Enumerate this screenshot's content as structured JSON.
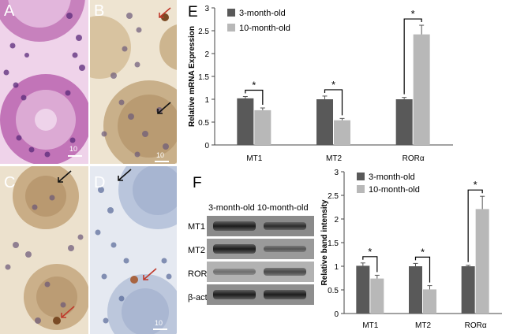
{
  "panels": {
    "A": {
      "letter": "A",
      "scale_label": "10"
    },
    "B": {
      "letter": "B",
      "scale_label": "10"
    },
    "C": {
      "letter": "C"
    },
    "D": {
      "letter": "D",
      "scale_label": "10"
    },
    "E": {
      "letter": "E"
    },
    "F": {
      "letter": "F"
    }
  },
  "blot": {
    "column_headers": "3-month-old 10-month-old",
    "rows": [
      "MT1",
      "MT2",
      "RORα",
      "β-actin"
    ]
  },
  "colors": {
    "series_dark": "#595959",
    "series_light": "#b8b8b8",
    "he_pink": "#c97fc0",
    "ihc_blue": "#a9b7d3",
    "ihc_brown": "#b98a4f"
  },
  "chart_data": [
    {
      "type": "bar",
      "panel": "E",
      "categories": [
        "MT1",
        "MT2",
        "RORα"
      ],
      "series": [
        {
          "name": "3-month-old",
          "values": [
            1.02,
            1.0,
            1.0
          ],
          "errors": [
            0.04,
            0.07,
            0.04
          ]
        },
        {
          "name": "10-month-old",
          "values": [
            0.76,
            0.54,
            2.42
          ],
          "errors": [
            0.05,
            0.04,
            0.2
          ]
        }
      ],
      "significance": [
        "*",
        "*",
        "*"
      ],
      "ylabel": "Relative mRNA Expression",
      "xlabel": "",
      "ylim": [
        0,
        3
      ],
      "yticks": [
        "0",
        "0.5",
        "1",
        "1.5",
        "2",
        "2.5",
        "3"
      ],
      "grid": false,
      "legend": "top-left"
    },
    {
      "type": "bar",
      "panel": "F",
      "categories": [
        "MT1",
        "MT2",
        "RORα"
      ],
      "series": [
        {
          "name": "3-month-old",
          "values": [
            1.01,
            1.0,
            1.0
          ],
          "errors": [
            0.06,
            0.06,
            0.02
          ]
        },
        {
          "name": "10-month-old",
          "values": [
            0.74,
            0.51,
            2.21
          ],
          "errors": [
            0.07,
            0.08,
            0.27
          ]
        }
      ],
      "significance": [
        "*",
        "*",
        "*"
      ],
      "ylabel": "Relative band intensity",
      "xlabel": "",
      "ylim": [
        0,
        3
      ],
      "yticks": [
        "0",
        "0.5",
        "1",
        "1.5",
        "2",
        "2.5",
        "3"
      ],
      "grid": false,
      "legend": "top-left"
    }
  ]
}
